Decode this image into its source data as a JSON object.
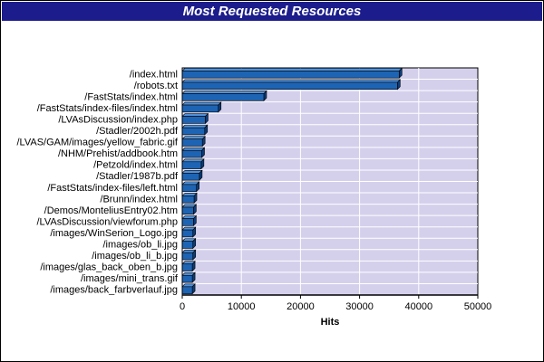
{
  "chart_data": {
    "type": "bar",
    "orientation": "horizontal",
    "title": "Most Requested Resources",
    "xlabel": "Hits",
    "ylabel": "",
    "xlim": [
      0,
      50000
    ],
    "x_ticks": [
      0,
      10000,
      20000,
      30000,
      40000,
      50000
    ],
    "grid": true,
    "legend": "none",
    "categories": [
      "/index.html",
      "/robots.txt",
      "/FastStats/index.html",
      "/FastStats/index-files/index.html",
      "/LVAsDiscussion/index.php",
      "/Stadler/2002h.pdf",
      "/LVAS/GAM/images/yellow_fabric.gif",
      "/NHM/Prehist/addbook.htm",
      "/Petzold/index.html",
      "/Stadler/1987b.pdf",
      "/FastStats/index-files/left.html",
      "/Brunn/index.html",
      "/Demos/MonteliusEntry02.htm",
      "/LVAsDiscussion/viewforum.php",
      "/images/WinSerion_Logo.jpg",
      "/images/ob_li.jpg",
      "/images/ob_li_b.jpg",
      "/images/glas_back_oben_b.jpg",
      "/images/mini_trans.gif",
      "/images/back_farbverlauf.jpg"
    ],
    "values": [
      36700,
      36400,
      13800,
      6100,
      3900,
      3800,
      3400,
      3300,
      3200,
      2900,
      2400,
      2000,
      1900,
      1900,
      1800,
      1800,
      1800,
      1700,
      1700,
      1700
    ]
  },
  "colors": {
    "title_bar": "#1c1c8c",
    "plot_background": "#d4d0ec",
    "bar_fill": "#1e64b4",
    "bar_top": "#5090d8",
    "bar_side": "#0c3c78",
    "grid": "#ffffff"
  }
}
